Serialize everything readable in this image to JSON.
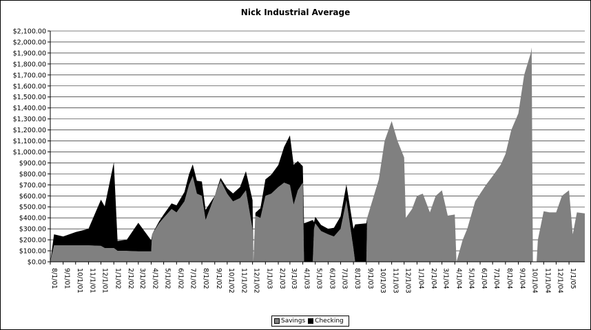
{
  "chart_data": {
    "type": "area",
    "title": "Nick Industrial Average",
    "xlabel": "",
    "ylabel": "",
    "ylim": [
      0,
      2100
    ],
    "y_tick_labels": [
      "$0.00",
      "$100.00",
      "$200.00",
      "$300.00",
      "$400.00",
      "$500.00",
      "$600.00",
      "$700.00",
      "$800.00",
      "$900.00",
      "$1,000.00",
      "$1,100.00",
      "$1,200.00",
      "$1,300.00",
      "$1,400.00",
      "$1,500.00",
      "$1,600.00",
      "$1,700.00",
      "$1,800.00",
      "$1,900.00",
      "$2,000.00",
      "$2,100.00"
    ],
    "x_tick_labels": [
      "8/1/01",
      "9/1/01",
      "10/1/01",
      "11/1/01",
      "12/1/01",
      "1/1/02",
      "2/1/02",
      "3/1/02",
      "4/1/02",
      "5/1/02",
      "6/1/02",
      "7/1/02",
      "8/1/02",
      "9/1/02",
      "10/1/02",
      "11/1/02",
      "12/1/02",
      "1/1/03",
      "2/1/03",
      "3/1/03",
      "4/1/03",
      "5/1/03",
      "6/1/03",
      "7/1/03",
      "8/1/03",
      "9/1/03",
      "10/1/03",
      "11/1/03",
      "12/1/03",
      "1/1/04",
      "2/1/04",
      "3/1/04",
      "4/1/04",
      "5/1/04",
      "6/1/04",
      "7/1/04",
      "8/1/04",
      "9/1/04",
      "10/1/04",
      "11/1/04",
      "12/1/04",
      "1/1/05"
    ],
    "x_start": "8/1/01",
    "x_end": "2/8/05",
    "grid": true,
    "legend_position": "bottom",
    "stacked": true,
    "series": [
      {
        "name": "Savings",
        "color": "#808080",
        "points": [
          [
            "8/1/01",
            0
          ],
          [
            "8/10/01",
            150
          ],
          [
            "9/1/01",
            150
          ],
          [
            "10/1/01",
            150
          ],
          [
            "11/1/01",
            150
          ],
          [
            "12/1/01",
            145
          ],
          [
            "12/10/01",
            125
          ],
          [
            "1/1/02",
            125
          ],
          [
            "1/10/02",
            100
          ],
          [
            "2/1/02",
            100
          ],
          [
            "3/1/02",
            95
          ],
          [
            "4/1/02",
            95
          ],
          [
            "4/3/02",
            250
          ],
          [
            "4/20/02",
            350
          ],
          [
            "5/1/02",
            400
          ],
          [
            "5/20/02",
            480
          ],
          [
            "6/1/02",
            450
          ],
          [
            "6/20/02",
            550
          ],
          [
            "7/1/02",
            700
          ],
          [
            "7/10/02",
            780
          ],
          [
            "7/20/02",
            620
          ],
          [
            "8/1/02",
            600
          ],
          [
            "8/10/02",
            380
          ],
          [
            "9/1/02",
            600
          ],
          [
            "9/15/02",
            740
          ],
          [
            "10/1/02",
            620
          ],
          [
            "10/15/02",
            550
          ],
          [
            "11/1/02",
            580
          ],
          [
            "11/15/02",
            650
          ],
          [
            "12/1/02",
            300
          ],
          [
            "12/3/02",
            0
          ],
          [
            "12/8/02",
            420
          ],
          [
            "12/20/02",
            400
          ],
          [
            "1/1/03",
            600
          ],
          [
            "1/15/03",
            620
          ],
          [
            "2/1/03",
            680
          ],
          [
            "2/15/03",
            720
          ],
          [
            "3/1/03",
            700
          ],
          [
            "3/10/03",
            520
          ],
          [
            "3/20/03",
            650
          ],
          [
            "4/1/03",
            720
          ],
          [
            "4/4/03",
            0
          ],
          [
            "4/25/03",
            0
          ],
          [
            "4/28/03",
            300
          ],
          [
            "5/1/03",
            350
          ],
          [
            "5/15/03",
            280
          ],
          [
            "6/1/03",
            250
          ],
          [
            "6/15/03",
            230
          ],
          [
            "7/1/03",
            300
          ],
          [
            "7/15/03",
            560
          ],
          [
            "8/1/03",
            120
          ],
          [
            "8/5/03",
            0
          ],
          [
            "9/1/03",
            0
          ],
          [
            "9/3/03",
            400
          ],
          [
            "9/15/03",
            550
          ],
          [
            "10/1/03",
            750
          ],
          [
            "10/15/03",
            1100
          ],
          [
            "11/1/03",
            1280
          ],
          [
            "11/15/03",
            1100
          ],
          [
            "12/1/03",
            950
          ],
          [
            "12/5/03",
            400
          ],
          [
            "12/20/03",
            480
          ],
          [
            "1/1/04",
            600
          ],
          [
            "1/15/04",
            620
          ],
          [
            "2/1/04",
            450
          ],
          [
            "2/15/04",
            600
          ],
          [
            "3/1/04",
            650
          ],
          [
            "3/15/04",
            420
          ],
          [
            "4/1/04",
            430
          ],
          [
            "4/5/04",
            0
          ],
          [
            "4/20/04",
            200
          ],
          [
            "5/1/04",
            300
          ],
          [
            "5/20/04",
            550
          ],
          [
            "6/1/04",
            620
          ],
          [
            "6/15/04",
            700
          ],
          [
            "7/1/04",
            780
          ],
          [
            "7/20/04",
            880
          ],
          [
            "8/1/04",
            980
          ],
          [
            "8/15/04",
            1200
          ],
          [
            "9/1/04",
            1350
          ],
          [
            "9/15/04",
            1700
          ],
          [
            "10/1/04",
            1900
          ],
          [
            "10/3/04",
            1950
          ],
          [
            "10/6/04",
            0
          ],
          [
            "10/15/04",
            0
          ],
          [
            "10/18/04",
            200
          ],
          [
            "11/1/04",
            460
          ],
          [
            "11/15/04",
            450
          ],
          [
            "12/1/04",
            450
          ],
          [
            "12/15/04",
            600
          ],
          [
            "1/1/05",
            650
          ],
          [
            "1/10/05",
            250
          ],
          [
            "1/20/05",
            450
          ],
          [
            "2/8/05",
            440
          ]
        ]
      },
      {
        "name": "Checking",
        "color": "#000000",
        "points": [
          [
            "8/1/01",
            0
          ],
          [
            "8/10/01",
            100
          ],
          [
            "9/1/01",
            80
          ],
          [
            "10/1/01",
            120
          ],
          [
            "11/1/01",
            150
          ],
          [
            "12/1/01",
            420
          ],
          [
            "12/10/01",
            380
          ],
          [
            "1/1/02",
            780
          ],
          [
            "1/10/02",
            90
          ],
          [
            "2/1/02",
            100
          ],
          [
            "3/1/02",
            260
          ],
          [
            "4/1/02",
            100
          ],
          [
            "4/3/02",
            0
          ],
          [
            "8/1/02",
            130
          ],
          [
            "9/1/02",
            0
          ],
          [
            "11/1/02",
            100
          ],
          [
            "12/1/02",
            260
          ],
          [
            "12/3/02",
            0
          ],
          [
            "1/1/03",
            150
          ],
          [
            "2/1/03",
            200
          ],
          [
            "3/1/03",
            450
          ],
          [
            "4/1/03",
            150
          ],
          [
            "4/4/03",
            350
          ],
          [
            "4/25/03",
            380
          ],
          [
            "4/28/03",
            60
          ],
          [
            "6/1/03",
            50
          ],
          [
            "8/1/03",
            180
          ],
          [
            "8/5/03",
            340
          ],
          [
            "9/1/03",
            350
          ],
          [
            "9/3/03",
            0
          ],
          [
            "2/8/05",
            0
          ]
        ]
      }
    ]
  }
}
